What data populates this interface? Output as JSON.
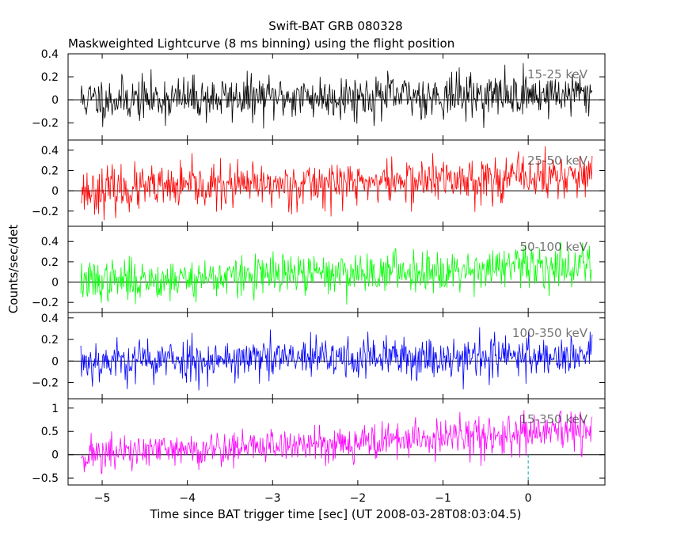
{
  "chart_data": {
    "type": "line",
    "title": "Swift-BAT GRB 080328",
    "subtitle": "Maskweighted Lightcurve (8 ms binning) using the flight position",
    "xlabel": "Time since BAT trigger time [sec] (UT 2008-03-28T08:03:04.5)",
    "ylabel": "Counts/sec/det",
    "xlim": [
      -5.4,
      0.9
    ],
    "x_ticks": [
      -5,
      -4,
      -3,
      -2,
      -1,
      0
    ],
    "x_tick_labels": [
      "−5",
      "−4",
      "−3",
      "−2",
      "−1",
      "0"
    ],
    "trigger_time": 0,
    "data_range": [
      -5.25,
      0.75
    ],
    "bin_size_sec": 0.008,
    "panels": [
      {
        "band": "15-25 keV",
        "color": "#000000",
        "ylim": [
          -0.35,
          0.4
        ],
        "y_ticks": [
          -0.2,
          0,
          0.2,
          0.4
        ],
        "y_tick_labels": [
          "−0.2",
          "0",
          "0.2",
          "0.4"
        ],
        "baseline": 0.0,
        "trend_end": 0.05,
        "noise_sd": 0.095,
        "seed": 11
      },
      {
        "band": "25-50 keV",
        "color": "#ff0000",
        "ylim": [
          -0.35,
          0.5
        ],
        "y_ticks": [
          -0.2,
          0,
          0.2,
          0.4
        ],
        "y_tick_labels": [
          "−0.2",
          "0",
          "0.2",
          "0.4"
        ],
        "baseline": 0.0,
        "trend_end": 0.15,
        "noise_sd": 0.11,
        "seed": 23
      },
      {
        "band": "50-100 keV",
        "color": "#00ff00",
        "ylim": [
          -0.3,
          0.55
        ],
        "y_ticks": [
          -0.2,
          0,
          0.2,
          0.4
        ],
        "y_tick_labels": [
          "−0.2",
          "0",
          "0.2",
          "0.4"
        ],
        "baseline": 0.0,
        "trend_end": 0.17,
        "noise_sd": 0.1,
        "seed": 37
      },
      {
        "band": "100-350 keV",
        "color": "#0000ff",
        "ylim": [
          -0.35,
          0.45
        ],
        "y_ticks": [
          -0.2,
          0,
          0.2,
          0.4
        ],
        "y_tick_labels": [
          "−0.2",
          "0",
          "0.2",
          "0.4"
        ],
        "baseline": 0.0,
        "trend_end": 0.05,
        "noise_sd": 0.1,
        "seed": 53
      },
      {
        "band": "15-350 keV",
        "color": "#ff00ff",
        "ylim": [
          -0.65,
          1.2
        ],
        "y_ticks": [
          -0.5,
          0,
          0.5,
          1
        ],
        "y_tick_labels": [
          "−0.5",
          "0",
          "0.5",
          "1"
        ],
        "baseline": 0.0,
        "trend_end": 0.5,
        "noise_sd": 0.2,
        "seed": 71
      }
    ],
    "grid": false,
    "legend": "band label inside each panel, top-right"
  }
}
